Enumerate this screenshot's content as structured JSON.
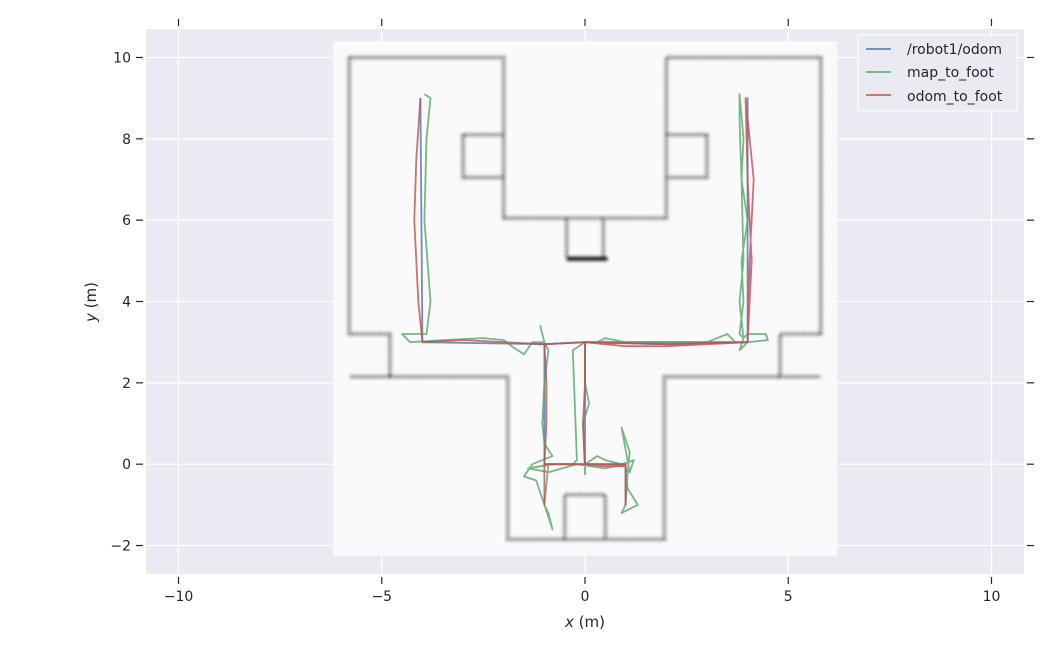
{
  "chart_data": {
    "type": "line",
    "xlabel_var": "x",
    "xlabel_unit": " (m)",
    "ylabel_var": "y",
    "ylabel_unit": " (m)",
    "xlim": [
      -10.8,
      10.8
    ],
    "ylim": [
      -2.7,
      10.7
    ],
    "x_ticks": [
      -10,
      -5,
      0,
      5,
      10
    ],
    "x_tick_labels": [
      "−10",
      "−5",
      "0",
      "5",
      "10"
    ],
    "y_ticks": [
      -2,
      0,
      2,
      4,
      6,
      8,
      10
    ],
    "y_tick_labels": [
      "−2",
      "0",
      "2",
      "4",
      "6",
      "8",
      "10"
    ],
    "grid": true,
    "legend_position": "top-right",
    "legend": [
      {
        "label": "/robot1/odom",
        "color": "#4c72b0"
      },
      {
        "label": "map_to_foot",
        "color": "#55a868"
      },
      {
        "label": "odom_to_foot",
        "color": "#c44e52"
      }
    ],
    "background_map": {
      "extent": {
        "x": [
          -6.2,
          6.2
        ],
        "y": [
          -2.25,
          10.4
        ]
      },
      "walls": [
        [
          [
            -5.8,
            10.0
          ],
          [
            -2.0,
            10.0
          ],
          [
            -2.0,
            6.05
          ],
          [
            2.0,
            6.05
          ],
          [
            2.0,
            10.0
          ],
          [
            5.8,
            10.0
          ],
          [
            5.8,
            3.2
          ],
          [
            4.8,
            3.2
          ],
          [
            4.8,
            2.15
          ],
          [
            5.8,
            2.15
          ]
        ],
        [
          [
            -5.8,
            10.0
          ],
          [
            -5.8,
            3.2
          ],
          [
            -4.8,
            3.2
          ],
          [
            -4.8,
            2.15
          ],
          [
            -5.8,
            2.15
          ]
        ],
        [
          [
            -4.8,
            2.15
          ],
          [
            -1.9,
            2.15
          ],
          [
            -1.9,
            -1.85
          ],
          [
            1.95,
            -1.85
          ],
          [
            1.95,
            2.15
          ],
          [
            4.8,
            2.15
          ]
        ],
        [
          [
            -2.0,
            8.1
          ],
          [
            -3.0,
            8.1
          ],
          [
            -3.0,
            7.05
          ],
          [
            -2.0,
            7.05
          ]
        ],
        [
          [
            2.0,
            8.1
          ],
          [
            3.0,
            8.1
          ],
          [
            3.0,
            7.05
          ],
          [
            2.0,
            7.05
          ]
        ],
        [
          [
            -0.45,
            6.05
          ],
          [
            -0.45,
            5.1
          ]
        ],
        [
          [
            0.45,
            6.05
          ],
          [
            0.45,
            5.1
          ]
        ],
        [
          [
            -0.5,
            -1.85
          ],
          [
            -0.5,
            -0.75
          ],
          [
            0.5,
            -0.75
          ],
          [
            0.5,
            -1.85
          ]
        ]
      ],
      "heavy_wall": [
        [
          -0.45,
          5.05
        ],
        [
          0.55,
          5.05
        ]
      ]
    },
    "series": [
      {
        "name": "/robot1/odom",
        "color": "#4c72b0",
        "points": [
          [
            -4.05,
            9.0
          ],
          [
            -4.0,
            3.0
          ],
          [
            -1.0,
            2.95
          ],
          [
            0.0,
            3.0
          ],
          [
            2.0,
            2.95
          ],
          [
            4.0,
            3.0
          ],
          [
            4.0,
            9.0
          ],
          [
            4.0,
            3.0
          ],
          [
            0.0,
            3.0
          ],
          [
            0.0,
            0.0
          ],
          [
            1.0,
            0.0
          ],
          [
            1.0,
            -1.0
          ],
          [
            1.0,
            0.0
          ],
          [
            -1.0,
            0.0
          ],
          [
            -1.0,
            2.95
          ]
        ]
      },
      {
        "name": "map_to_foot",
        "color": "#55a868",
        "points": [
          [
            -3.95,
            9.1
          ],
          [
            -3.8,
            9.0
          ],
          [
            -3.9,
            8.0
          ],
          [
            -3.95,
            6.0
          ],
          [
            -3.8,
            4.0
          ],
          [
            -3.9,
            3.2
          ],
          [
            -4.5,
            3.2
          ],
          [
            -4.3,
            3.0
          ],
          [
            -3.5,
            3.05
          ],
          [
            -2.5,
            3.1
          ],
          [
            -2.0,
            3.05
          ],
          [
            -1.8,
            2.9
          ],
          [
            -1.5,
            2.7
          ],
          [
            -1.3,
            3.0
          ],
          [
            -1.0,
            3.0
          ],
          [
            -1.1,
            3.4
          ],
          [
            -1.0,
            3.0
          ],
          [
            -0.9,
            2.8
          ],
          [
            -1.0,
            2.0
          ],
          [
            -1.05,
            1.0
          ],
          [
            -1.0,
            0.5
          ],
          [
            -0.8,
            0.2
          ],
          [
            -1.3,
            0.0
          ],
          [
            -1.5,
            -0.3
          ],
          [
            -1.2,
            -0.4
          ],
          [
            -1.0,
            -1.0
          ],
          [
            -0.8,
            -1.6
          ],
          [
            -0.9,
            -1.2
          ],
          [
            -1.0,
            -1.0
          ],
          [
            -0.9,
            0.0
          ],
          [
            -0.3,
            0.0
          ],
          [
            -0.2,
            0.1
          ],
          [
            -0.3,
            2.8
          ],
          [
            0.0,
            3.0
          ],
          [
            0.3,
            3.0
          ],
          [
            0.5,
            3.1
          ],
          [
            1.0,
            3.0
          ],
          [
            2.0,
            3.0
          ],
          [
            3.0,
            3.0
          ],
          [
            3.5,
            3.2
          ],
          [
            3.7,
            3.0
          ],
          [
            4.0,
            3.0
          ],
          [
            4.5,
            3.05
          ],
          [
            4.45,
            3.2
          ],
          [
            4.0,
            3.2
          ],
          [
            3.9,
            3.1
          ],
          [
            3.8,
            3.2
          ],
          [
            3.9,
            4.0
          ],
          [
            3.85,
            5.0
          ],
          [
            4.0,
            6.0
          ],
          [
            3.85,
            7.0
          ],
          [
            3.9,
            8.0
          ],
          [
            3.8,
            9.1
          ],
          [
            3.8,
            8.5
          ],
          [
            3.85,
            7.0
          ],
          [
            3.9,
            5.0
          ],
          [
            3.8,
            4.0
          ],
          [
            3.9,
            3.1
          ],
          [
            3.8,
            2.8
          ],
          [
            4.0,
            3.0
          ],
          [
            3.0,
            3.0
          ],
          [
            0.0,
            3.0
          ],
          [
            0.0,
            2.0
          ],
          [
            0.1,
            1.5
          ],
          [
            -0.05,
            1.0
          ],
          [
            0.0,
            -0.25
          ],
          [
            0.0,
            0.0
          ],
          [
            0.3,
            0.2
          ],
          [
            0.5,
            0.1
          ],
          [
            0.9,
            0.0
          ],
          [
            1.2,
            0.1
          ],
          [
            1.1,
            -0.2
          ],
          [
            0.9,
            0.9
          ],
          [
            1.1,
            0.3
          ],
          [
            1.05,
            -0.2
          ],
          [
            1.0,
            -1.0
          ],
          [
            0.9,
            -1.2
          ],
          [
            1.1,
            -1.1
          ],
          [
            1.3,
            -1.0
          ],
          [
            1.05,
            -0.6
          ],
          [
            1.0,
            0.0
          ],
          [
            0.5,
            -0.1
          ],
          [
            -0.2,
            0.0
          ],
          [
            -0.9,
            -0.2
          ],
          [
            -1.4,
            -0.1
          ],
          [
            -0.8,
            0.0
          ]
        ]
      },
      {
        "name": "odom_to_foot",
        "color": "#c44e52",
        "points": [
          [
            -4.05,
            9.0
          ],
          [
            -4.15,
            7.5
          ],
          [
            -4.2,
            6.0
          ],
          [
            -4.1,
            4.0
          ],
          [
            -4.0,
            3.0
          ],
          [
            -3.0,
            3.05
          ],
          [
            -2.0,
            3.0
          ],
          [
            -1.0,
            2.95
          ],
          [
            0.0,
            3.0
          ],
          [
            1.0,
            2.9
          ],
          [
            2.0,
            2.9
          ],
          [
            3.0,
            2.95
          ],
          [
            4.0,
            3.0
          ],
          [
            4.05,
            5.0
          ],
          [
            4.15,
            7.0
          ],
          [
            4.0,
            8.5
          ],
          [
            3.95,
            9.0
          ],
          [
            4.0,
            7.0
          ],
          [
            4.1,
            5.0
          ],
          [
            4.0,
            3.0
          ],
          [
            2.0,
            2.95
          ],
          [
            0.0,
            3.0
          ],
          [
            0.0,
            2.0
          ],
          [
            -0.05,
            1.0
          ],
          [
            0.0,
            0.0
          ],
          [
            0.5,
            -0.05
          ],
          [
            1.0,
            -0.05
          ],
          [
            1.0,
            -0.5
          ],
          [
            1.0,
            -1.0
          ],
          [
            1.0,
            -0.5
          ],
          [
            1.0,
            0.0
          ],
          [
            0.0,
            0.0
          ],
          [
            -1.0,
            0.0
          ],
          [
            -1.0,
            -1.0
          ],
          [
            -1.0,
            0.0
          ],
          [
            -0.95,
            1.0
          ],
          [
            -0.95,
            2.0
          ],
          [
            -1.0,
            2.95
          ]
        ]
      }
    ]
  }
}
